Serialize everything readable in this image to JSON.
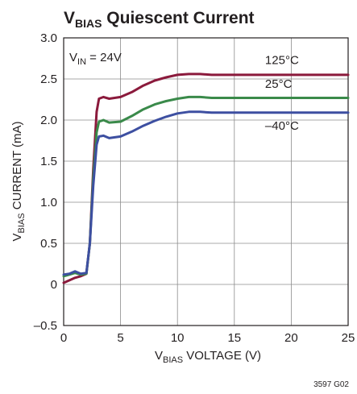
{
  "chart_data": {
    "type": "line",
    "title": {
      "main": "V",
      "sub": "BIAS",
      "rest": " Quiescent Current"
    },
    "xlabel": {
      "main": "V",
      "sub": "BIAS",
      "rest": " VOLTAGE (V)"
    },
    "ylabel": {
      "main": "V",
      "sub": "BIAS",
      "rest": " CURRENT (mA)"
    },
    "condition": {
      "main": "V",
      "sub": "IN",
      "rest": " = 24V"
    },
    "figure_code": "3597 G02",
    "xlim": [
      0,
      25
    ],
    "ylim": [
      -0.5,
      3.0
    ],
    "x_ticks": [
      "0",
      "5",
      "10",
      "15",
      "20",
      "25"
    ],
    "y_ticks": [
      "–0.5",
      "0",
      "0.5",
      "1.0",
      "1.5",
      "2.0",
      "2.5",
      "3.0"
    ],
    "grid": true,
    "series": [
      {
        "name": "125°C",
        "color": "#8b1a3c",
        "points": [
          [
            0,
            0.02
          ],
          [
            0.5,
            0.05
          ],
          [
            1,
            0.08
          ],
          [
            1.5,
            0.1
          ],
          [
            2,
            0.13
          ],
          [
            2.3,
            0.5
          ],
          [
            2.6,
            1.4
          ],
          [
            2.9,
            2.1
          ],
          [
            3.1,
            2.26
          ],
          [
            3.5,
            2.28
          ],
          [
            4,
            2.26
          ],
          [
            5,
            2.28
          ],
          [
            6,
            2.34
          ],
          [
            7,
            2.42
          ],
          [
            8,
            2.48
          ],
          [
            9,
            2.52
          ],
          [
            10,
            2.55
          ],
          [
            11,
            2.56
          ],
          [
            12,
            2.56
          ],
          [
            13,
            2.55
          ],
          [
            14,
            2.55
          ],
          [
            15,
            2.55
          ],
          [
            17,
            2.55
          ],
          [
            20,
            2.55
          ],
          [
            25,
            2.55
          ]
        ]
      },
      {
        "name": "25°C",
        "color": "#3a8a4a",
        "points": [
          [
            0,
            0.1
          ],
          [
            0.5,
            0.12
          ],
          [
            1,
            0.14
          ],
          [
            1.5,
            0.12
          ],
          [
            2,
            0.13
          ],
          [
            2.3,
            0.5
          ],
          [
            2.6,
            1.3
          ],
          [
            2.9,
            1.85
          ],
          [
            3.1,
            1.98
          ],
          [
            3.5,
            2.0
          ],
          [
            4,
            1.97
          ],
          [
            5,
            1.98
          ],
          [
            6,
            2.05
          ],
          [
            7,
            2.13
          ],
          [
            8,
            2.19
          ],
          [
            9,
            2.23
          ],
          [
            10,
            2.26
          ],
          [
            11,
            2.28
          ],
          [
            12,
            2.28
          ],
          [
            13,
            2.27
          ],
          [
            14,
            2.27
          ],
          [
            15,
            2.27
          ],
          [
            17,
            2.27
          ],
          [
            20,
            2.27
          ],
          [
            25,
            2.27
          ]
        ]
      },
      {
        "name": "–40°C",
        "color": "#3d4fa1",
        "points": [
          [
            0,
            0.12
          ],
          [
            0.5,
            0.13
          ],
          [
            1,
            0.16
          ],
          [
            1.5,
            0.13
          ],
          [
            2,
            0.14
          ],
          [
            2.3,
            0.5
          ],
          [
            2.6,
            1.2
          ],
          [
            2.9,
            1.7
          ],
          [
            3.1,
            1.8
          ],
          [
            3.5,
            1.81
          ],
          [
            4,
            1.78
          ],
          [
            5,
            1.8
          ],
          [
            6,
            1.86
          ],
          [
            7,
            1.93
          ],
          [
            8,
            1.99
          ],
          [
            9,
            2.04
          ],
          [
            10,
            2.08
          ],
          [
            11,
            2.1
          ],
          [
            12,
            2.1
          ],
          [
            13,
            2.09
          ],
          [
            14,
            2.09
          ],
          [
            15,
            2.09
          ],
          [
            17,
            2.09
          ],
          [
            20,
            2.09
          ],
          [
            25,
            2.09
          ]
        ]
      }
    ],
    "series_labels": [
      {
        "text": "125°C",
        "x": 17.7,
        "y": 2.68
      },
      {
        "text": "25°C",
        "x": 17.7,
        "y": 2.39
      },
      {
        "text": "–40°C",
        "x": 17.7,
        "y": 1.88
      }
    ]
  }
}
